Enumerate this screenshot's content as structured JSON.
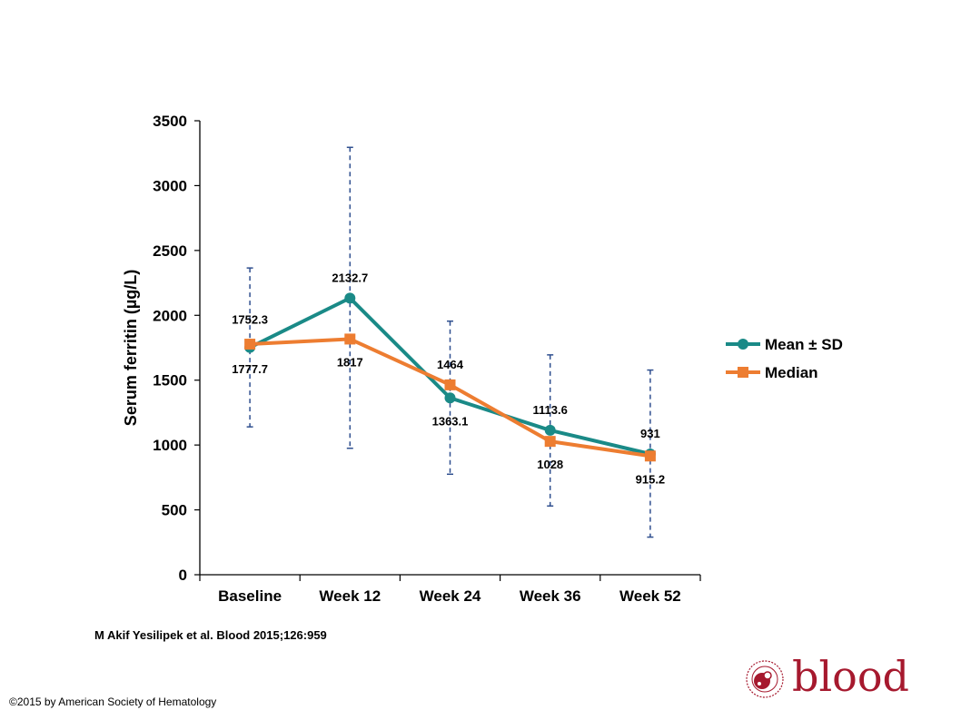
{
  "chart_data": {
    "type": "line",
    "title": "",
    "xlabel": "",
    "ylabel": "Serum ferritin (µg/L)",
    "categories": [
      "Baseline",
      "Week 12",
      "Week 24",
      "Week 36",
      "Week 52"
    ],
    "ylim": [
      0,
      3500
    ],
    "yticks": [
      "0",
      "500",
      "1000",
      "1500",
      "2000",
      "2500",
      "3000",
      "3500"
    ],
    "grid": false,
    "legend_position": "right",
    "series": [
      {
        "name": "Mean ± SD",
        "marker": "circle",
        "color": "#1a8a87",
        "values": [
          1752.3,
          2132.7,
          1363.1,
          1113.6,
          931
        ],
        "labels": [
          "1752.3",
          "2132.7",
          "1363.1",
          "1113.6",
          "931"
        ],
        "error_low": [
          1140,
          975,
          775,
          530,
          290
        ],
        "error_high": [
          2365,
          3295,
          1955,
          1695,
          1578
        ]
      },
      {
        "name": "Median",
        "marker": "square",
        "color": "#ed7d31",
        "values": [
          1777.7,
          1817,
          1464,
          1028,
          915.2
        ],
        "labels": [
          "1777.7",
          "1817",
          "1464",
          "1028",
          "915.2"
        ]
      }
    ],
    "error_bar_color": "#2f4f8f"
  },
  "citation": "M Akif Yesilipek et al. Blood 2015;126:959",
  "copyright": "©2015 by American Society of Hematology",
  "logo": {
    "word": "blood",
    "seal_text": "AMERICAN SOCIETY OF HEMATOLOGY",
    "color": "#a6192e"
  }
}
